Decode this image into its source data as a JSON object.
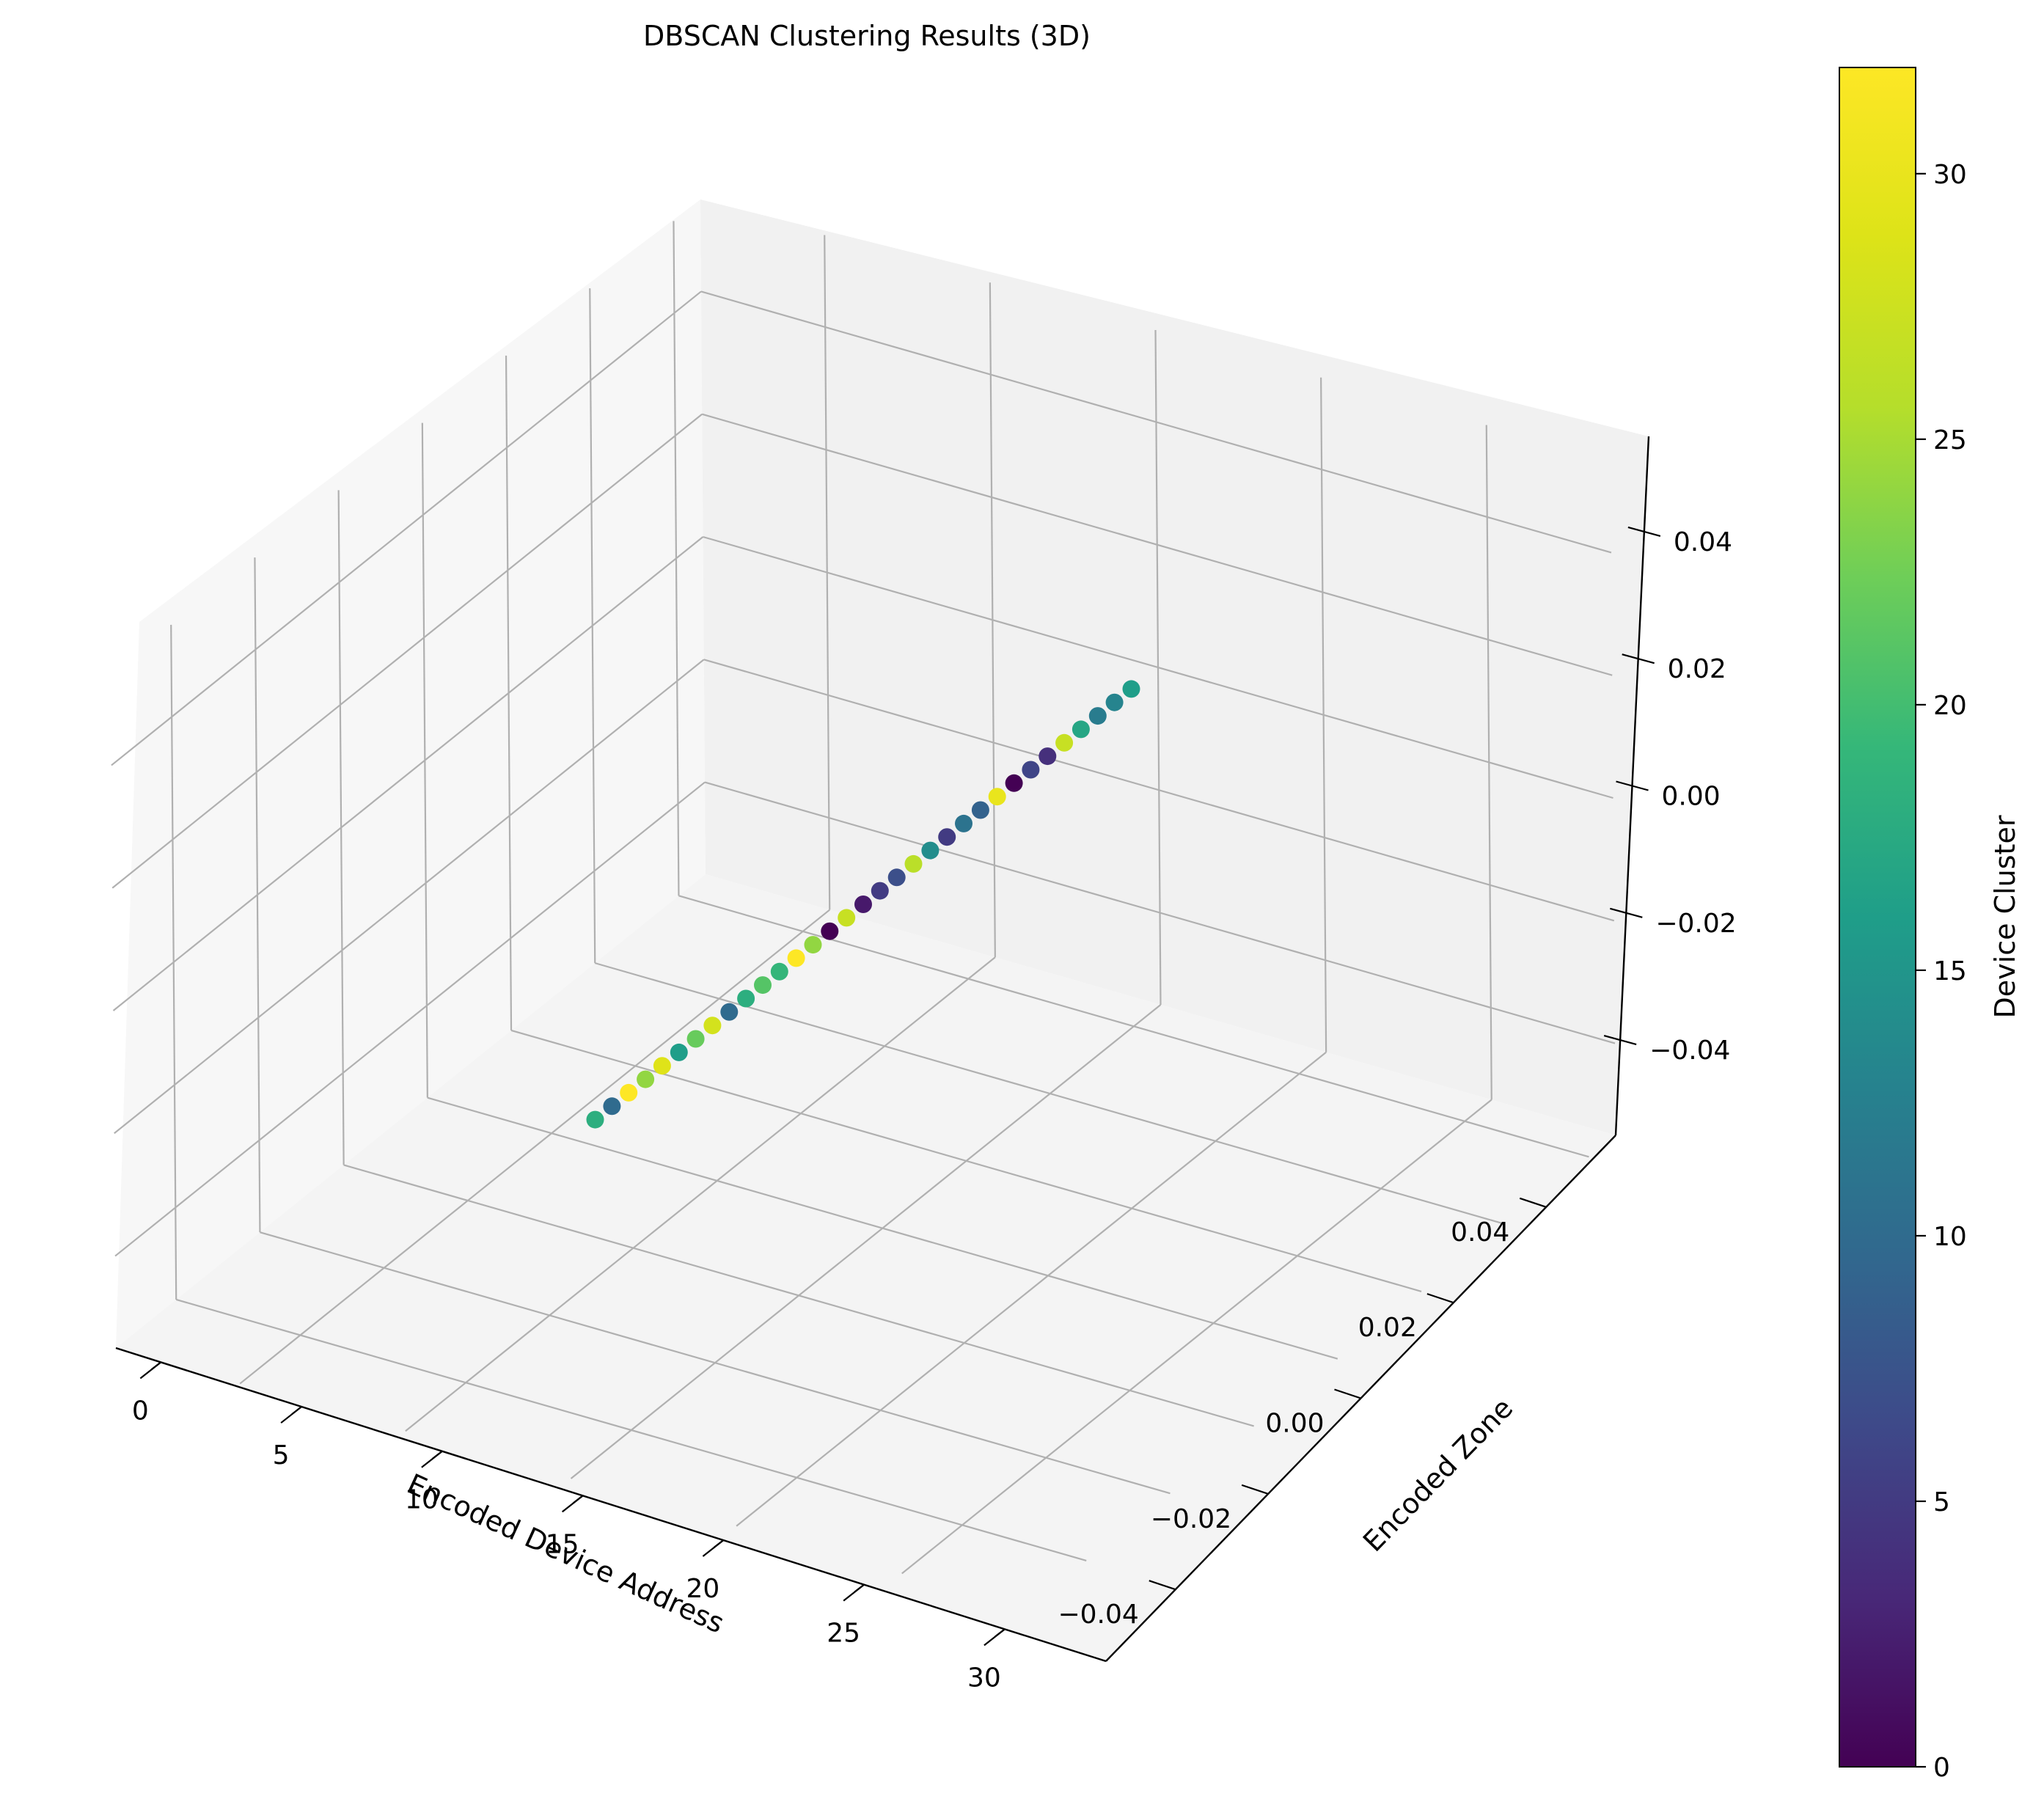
{
  "chart_data": {
    "type": "scatter",
    "projection": "3d",
    "title": "DBSCAN Clustering Results (3D)",
    "xlabel": "Encoded Device Address",
    "ylabel": "Encoded Zone",
    "zlabel": "",
    "xlim": [
      -1.6,
      33.6
    ],
    "ylim": [
      -0.055,
      0.055
    ],
    "zlim": [
      -0.055,
      0.055
    ],
    "x_ticks": [
      "0",
      "5",
      "10",
      "15",
      "20",
      "25",
      "30"
    ],
    "y_ticks": [
      "−0.04",
      "−0.02",
      "0.00",
      "0.02",
      "0.04"
    ],
    "z_ticks": [
      "−0.04",
      "−0.02",
      "0.00",
      "0.02",
      "0.04"
    ],
    "grid": true,
    "colormap": "viridis",
    "colorbar": {
      "label": "Device Cluster",
      "range": [
        0,
        32
      ],
      "ticks": [
        "0",
        "5",
        "10",
        "15",
        "20",
        "25",
        "30"
      ]
    },
    "points": {
      "x": [
        0,
        1,
        2,
        3,
        4,
        5,
        6,
        7,
        8,
        9,
        10,
        11,
        12,
        13,
        14,
        15,
        16,
        17,
        18,
        19,
        20,
        21,
        22,
        23,
        24,
        25,
        26,
        27,
        28,
        29,
        30,
        31,
        32
      ],
      "y": [
        0,
        0,
        0,
        0,
        0,
        0,
        0,
        0,
        0,
        0,
        0,
        0,
        0,
        0,
        0,
        0,
        0,
        0,
        0,
        0,
        0,
        0,
        0,
        0,
        0,
        0,
        0,
        0,
        0,
        0,
        0,
        0,
        0
      ],
      "z": [
        0,
        0,
        0,
        0,
        0,
        0,
        0,
        0,
        0,
        0,
        0,
        0,
        0,
        0,
        0,
        0,
        0,
        0,
        0,
        0,
        0,
        0,
        0,
        0,
        0,
        0,
        0,
        0,
        0,
        0,
        0,
        0,
        0
      ],
      "cluster": [
        16,
        13,
        12,
        17,
        27,
        4,
        6,
        0,
        30,
        9,
        11,
        5,
        14,
        26,
        7,
        5,
        2,
        27,
        0,
        24,
        32,
        19,
        21,
        18,
        10,
        28,
        22,
        16,
        29,
        24,
        32,
        10,
        18
      ]
    }
  }
}
